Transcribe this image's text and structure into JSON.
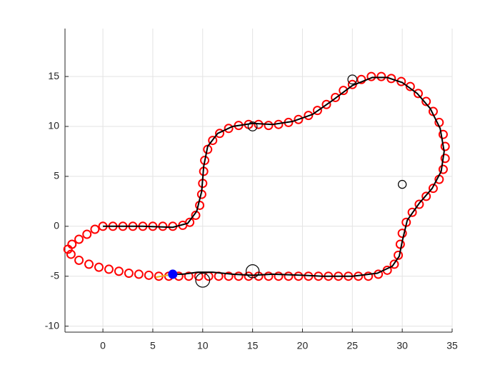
{
  "chart_data": {
    "type": "scatter",
    "xlim": [
      -3.8,
      35
    ],
    "ylim": [
      -10.6,
      19.8
    ],
    "xticks": [
      0,
      5,
      10,
      15,
      20,
      25,
      30,
      35
    ],
    "yticks": [
      -10,
      -5,
      0,
      5,
      10,
      15
    ],
    "grid": true,
    "series": [
      {
        "type": "scatter",
        "color": "#ff0000",
        "filled": false,
        "x": [
          0,
          1,
          2,
          3,
          4,
          5,
          6,
          7,
          8,
          8.7,
          9.3,
          9.7,
          9.9,
          10,
          10.1,
          10.2,
          10.5,
          11,
          11.7,
          12.6,
          13.6,
          14.6,
          15.6,
          16.6,
          17.6,
          18.6,
          19.6,
          20.6,
          21.5,
          22.4,
          23.3,
          24.1,
          25,
          25.9,
          26.9,
          27.9,
          28.9,
          29.9,
          30.8,
          31.6,
          32.4,
          33.1,
          33.7,
          34.1,
          34.3,
          34.3,
          34.1,
          33.7,
          33.1,
          32.4,
          31.7,
          31,
          30.4,
          30,
          29.8,
          29.6,
          29.2,
          28.5,
          27.6,
          26.6,
          25.6,
          24.6,
          23.6,
          22.6,
          21.6,
          20.6,
          19.6,
          18.6,
          17.6,
          16.6,
          15.6,
          14.6,
          13.6,
          12.6,
          11.6,
          10.6,
          9.6,
          8.6,
          7.6,
          6.6,
          5.6,
          4.6,
          3.6,
          2.6,
          1.6,
          0.6,
          -0.4,
          -1.4,
          -2.4,
          -3.2,
          -3.5,
          -3.1,
          -2.4,
          -1.6,
          -0.8
        ],
        "values": [
          0,
          0,
          0,
          0,
          0,
          0,
          0,
          0,
          0.1,
          0.4,
          1.1,
          2.1,
          3.2,
          4.3,
          5.5,
          6.6,
          7.7,
          8.6,
          9.3,
          9.8,
          10.1,
          10.2,
          10.2,
          10.1,
          10.2,
          10.4,
          10.7,
          11.1,
          11.6,
          12.2,
          12.9,
          13.6,
          14.2,
          14.7,
          15,
          15,
          14.8,
          14.5,
          14,
          13.3,
          12.5,
          11.5,
          10.4,
          9.2,
          8,
          6.8,
          5.7,
          4.7,
          3.8,
          3,
          2.2,
          1.4,
          0.4,
          -0.7,
          -1.8,
          -2.9,
          -3.8,
          -4.4,
          -4.8,
          -5,
          -5,
          -5,
          -5,
          -5,
          -5,
          -5,
          -5,
          -5,
          -5,
          -5,
          -5,
          -5,
          -5,
          -5,
          -5,
          -5,
          -5,
          -5,
          -5,
          -5,
          -5,
          -4.9,
          -4.8,
          -4.7,
          -4.5,
          -4.3,
          -4.1,
          -3.8,
          -3.4,
          -2.8,
          -2.3,
          -1.8,
          -1.3,
          -0.8,
          -0.3
        ]
      },
      {
        "type": "line",
        "color": "#000000",
        "x": [
          0,
          4,
          7,
          8.5,
          9.4,
          9.9,
          10.1,
          10.5,
          11.5,
          13,
          15,
          17,
          19,
          21,
          23,
          25,
          27,
          28.5,
          30,
          31.5,
          32.8,
          33.8,
          34.2,
          33.9,
          33,
          31.7,
          30.5,
          30,
          29.7,
          29,
          27.5,
          25,
          22,
          20,
          17,
          15,
          13,
          11,
          9.5,
          8,
          7
        ],
        "values": [
          0,
          0,
          -0.1,
          0.3,
          1.5,
          3.5,
          6,
          8,
          9.3,
          10,
          10.3,
          10.2,
          10.5,
          11.2,
          12.6,
          14.1,
          14.9,
          14.9,
          14.4,
          13.3,
          11.8,
          9.8,
          7.5,
          5.5,
          3.8,
          2.3,
          0.6,
          -1.5,
          -3,
          -4,
          -4.7,
          -5,
          -5,
          -4.9,
          -4.8,
          -4.9,
          -4.8,
          -4.6,
          -4.6,
          -4.8,
          -4.8
        ]
      },
      {
        "type": "line",
        "color": "#edb120",
        "x": [
          5.3,
          7
        ],
        "values": [
          -5.1,
          -4.8
        ]
      },
      {
        "type": "scatter",
        "color": "#0000ff",
        "filled": true,
        "x": [
          7
        ],
        "values": [
          -4.8
        ]
      },
      {
        "type": "bubble",
        "color": "#000000",
        "x": [
          15,
          25,
          30,
          15,
          10
        ],
        "values": [
          10,
          14.7,
          4.2,
          -4.5,
          -5.4
        ],
        "sizes": [
          0.45,
          0.45,
          0.4,
          0.65,
          0.7
        ]
      }
    ]
  }
}
